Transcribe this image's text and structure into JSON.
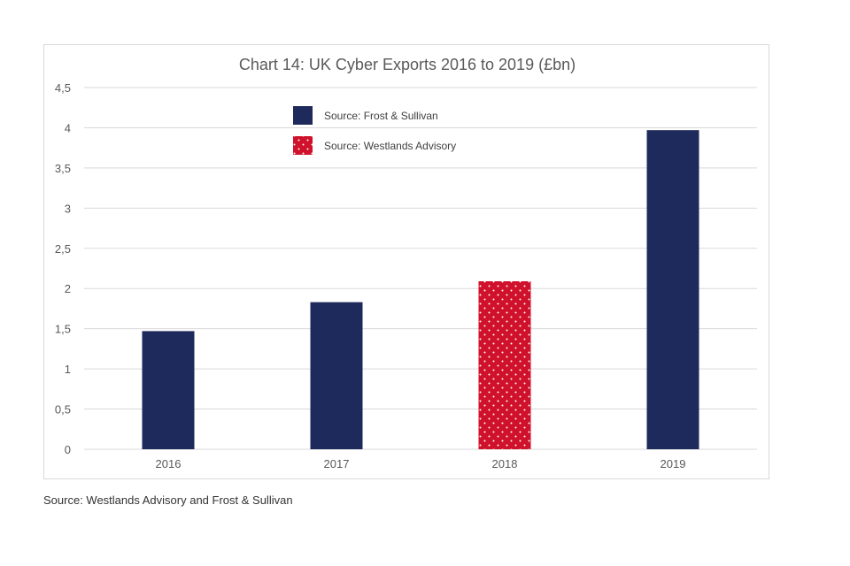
{
  "chart_data": {
    "type": "bar",
    "title": "Chart 14: UK Cyber Exports 2016 to 2019 (£bn)",
    "xlabel": "",
    "ylabel": "",
    "categories": [
      "2016",
      "2017",
      "2018",
      "2019"
    ],
    "values": [
      1.47,
      1.83,
      2.09,
      3.97
    ],
    "bar_source": [
      "Source: Frost & Sullivan",
      "Source: Frost & Sullivan",
      "Source: Westlands Advisory",
      "Source: Frost & Sullivan"
    ],
    "ylim": [
      0,
      4.5
    ],
    "yticks": [
      "0",
      "0,5",
      "1",
      "1,5",
      "2",
      "2,5",
      "3",
      "3,5",
      "4",
      "4,5"
    ],
    "grid": true,
    "legend": {
      "placement": "top-center",
      "entries": [
        {
          "label": "Source: Frost & Sullivan",
          "color": "#1f2a5c",
          "pattern": "solid"
        },
        {
          "label": "Source: Westlands Advisory",
          "color": "#d0112b",
          "pattern": "dotted"
        }
      ]
    },
    "colors": {
      "frost": "#1f2a5c",
      "westlands": "#d0112b",
      "grid": "#d9d9d9"
    }
  },
  "footnote": "Source: Westlands Advisory and Frost & Sullivan"
}
